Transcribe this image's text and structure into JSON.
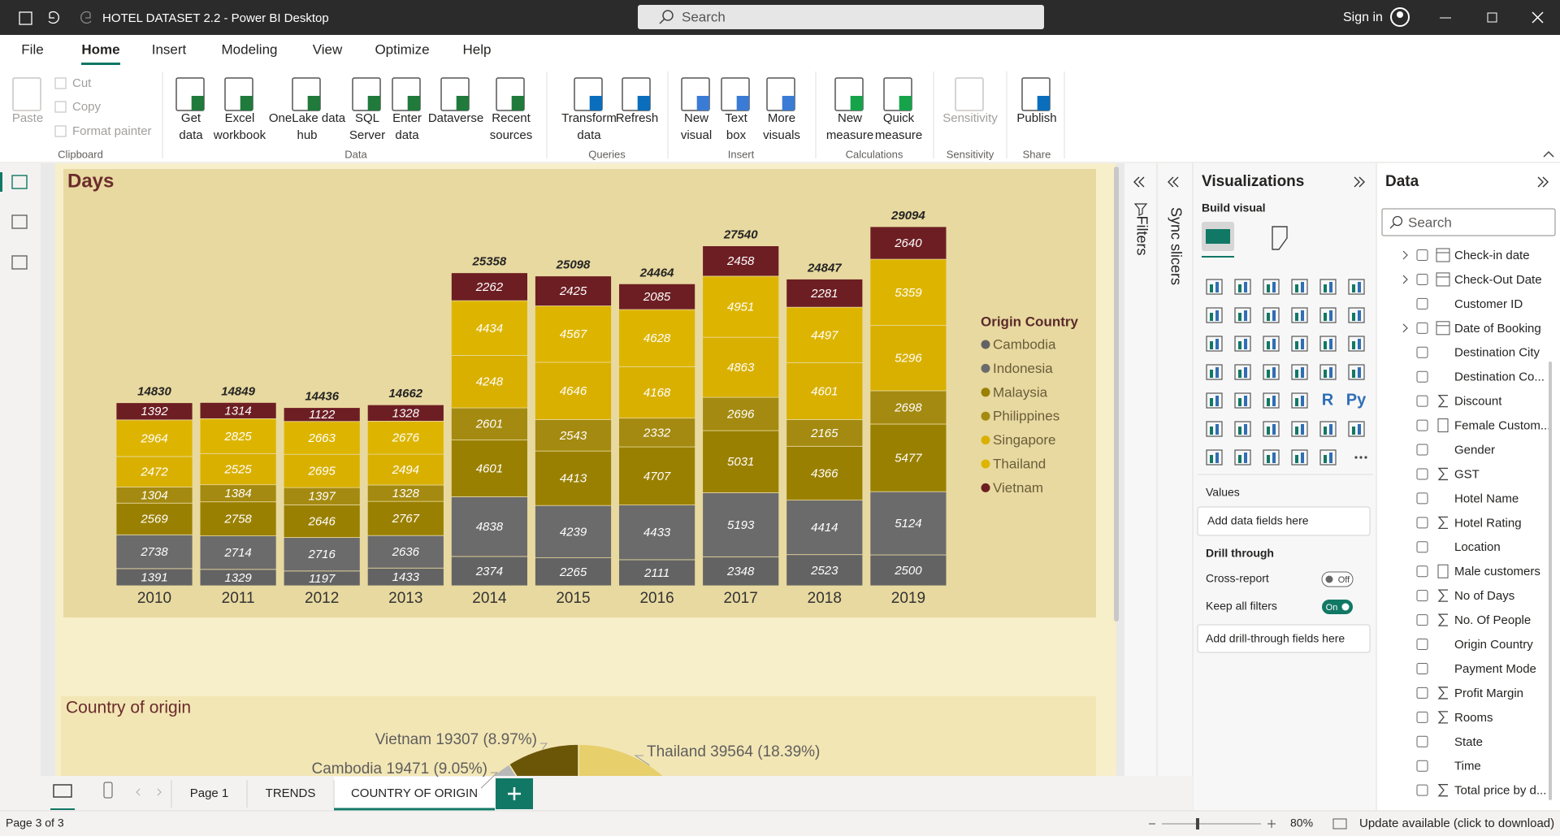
{
  "app": {
    "window_title": "HOTEL DATASET 2.2 - Power BI Desktop",
    "search": "Search",
    "sign_in": "Sign in",
    "tabs": [
      "File",
      "Home",
      "Insert",
      "Modeling",
      "View",
      "Optimize",
      "Help"
    ],
    "ribbon": [
      {
        "group": "Clipboard",
        "buttons": [
          [
            "Paste"
          ],
          [
            "Cut"
          ],
          [
            "Copy"
          ],
          [
            "Format painter"
          ]
        ]
      },
      {
        "group": "Data",
        "buttons": [
          [
            "Get",
            "data"
          ],
          [
            "Excel",
            "workbook"
          ],
          [
            "OneLake data",
            "hub"
          ],
          [
            "SQL",
            "Server"
          ],
          [
            "Enter",
            "data"
          ],
          [
            "Dataverse"
          ],
          [
            "Recent",
            "sources"
          ]
        ]
      },
      {
        "group": "Queries",
        "buttons": [
          [
            "Transform",
            "data"
          ],
          [
            "Refresh"
          ]
        ]
      },
      {
        "group": "Insert",
        "buttons": [
          [
            "New",
            "visual"
          ],
          [
            "Text",
            "box"
          ],
          [
            "More",
            "visuals"
          ]
        ]
      },
      {
        "group": "Calculations",
        "buttons": [
          [
            "New",
            "measure"
          ],
          [
            "Quick",
            "measure"
          ]
        ]
      },
      {
        "group": "Sensitivity",
        "buttons": [
          [
            "Sensitivity"
          ]
        ]
      },
      {
        "group": "Share",
        "buttons": [
          [
            "Publish"
          ]
        ]
      }
    ],
    "filters": "Filters",
    "sync_slicers": "Sync slicers",
    "visualizations": {
      "title": "Visualizations",
      "build_visual": "Build visual",
      "gallery_labels": [
        "R",
        "Py"
      ],
      "values": "Values",
      "add_fields": "Add data fields here",
      "drill_through": "Drill through",
      "cross_report": "Cross-report",
      "cross_report_state": "Off",
      "keep_filters": "Keep all filters",
      "keep_filters_state": "On",
      "add_drill": "Add drill-through fields here"
    },
    "data_pane": {
      "title": "Data",
      "search": "Search",
      "fields": [
        "Check-in date",
        "Check-Out Date",
        "Customer ID",
        "Date of Booking",
        "Destination City",
        "Destination Co...",
        "Discount",
        "Female Custom...",
        "Gender",
        "GST",
        "Hotel Name",
        "Hotel Rating",
        "Location",
        "Male customers",
        "No of Days",
        "No. Of People",
        "Origin Country",
        "Payment Mode",
        "Profit Margin",
        "Rooms",
        "State",
        "Time",
        "Total price by d..."
      ]
    },
    "page_tabs": [
      "Page 1",
      "TRENDS",
      "COUNTRY OF ORIGIN"
    ],
    "status": {
      "page": "Page 3 of 3",
      "zoom": "80%",
      "update": "Update available (click to download)"
    }
  },
  "chart_data": [
    {
      "type": "bar",
      "stacked": true,
      "title": "Days",
      "categories": [
        "2010",
        "2011",
        "2012",
        "2013",
        "2014",
        "2015",
        "2016",
        "2017",
        "2018",
        "2019"
      ],
      "series": [
        {
          "name": "Cambodia",
          "color": "#636363",
          "values": [
            1391,
            1329,
            1197,
            1433,
            2374,
            2265,
            2111,
            2348,
            2523,
            2500
          ]
        },
        {
          "name": "Indonesia",
          "color": "#6b6b6b",
          "values": [
            2738,
            2714,
            2716,
            2636,
            4838,
            4239,
            4433,
            5193,
            4414,
            5124
          ]
        },
        {
          "name": "Malaysia",
          "color": "#9a8000",
          "values": [
            2569,
            2758,
            2646,
            2767,
            4601,
            4413,
            4707,
            5031,
            4366,
            5477
          ]
        },
        {
          "name": "Philippines",
          "color": "#a48a10",
          "values": [
            1304,
            1384,
            1397,
            1328,
            2601,
            2543,
            2332,
            2696,
            2165,
            2698
          ]
        },
        {
          "name": "Singapore",
          "color": "#d9b000",
          "values": [
            2472,
            2525,
            2695,
            2494,
            4248,
            4646,
            4168,
            4863,
            4601,
            5296
          ]
        },
        {
          "name": "Thailand",
          "color": "#ddb500",
          "values": [
            2964,
            2825,
            2663,
            2676,
            4434,
            4567,
            4628,
            4951,
            4497,
            5359
          ]
        },
        {
          "name": "Vietnam",
          "color": "#6d1e23",
          "values": [
            1392,
            1314,
            1122,
            1328,
            2262,
            2425,
            2085,
            2458,
            2281,
            2640
          ]
        }
      ],
      "totals": [
        14830,
        14849,
        14436,
        14662,
        25358,
        25098,
        24464,
        27540,
        24847,
        29094
      ],
      "legend_title": "Origin Country",
      "legend": "right"
    },
    {
      "type": "pie",
      "title": "Country of origin",
      "categories": [
        "Thailand",
        "Vietnam",
        "Cambodia"
      ],
      "values": [
        39564,
        19307,
        19471
      ],
      "percentages": [
        18.39,
        8.97,
        9.05
      ],
      "value_labels": [
        "Thailand 39564 (18.39%)",
        "Vietnam 19307 (8.97%)",
        "Cambodia 19471 (9.05%)"
      ],
      "colors": [
        "#e7cf6c",
        "#6b5608",
        "#b8b8b8"
      ]
    }
  ]
}
